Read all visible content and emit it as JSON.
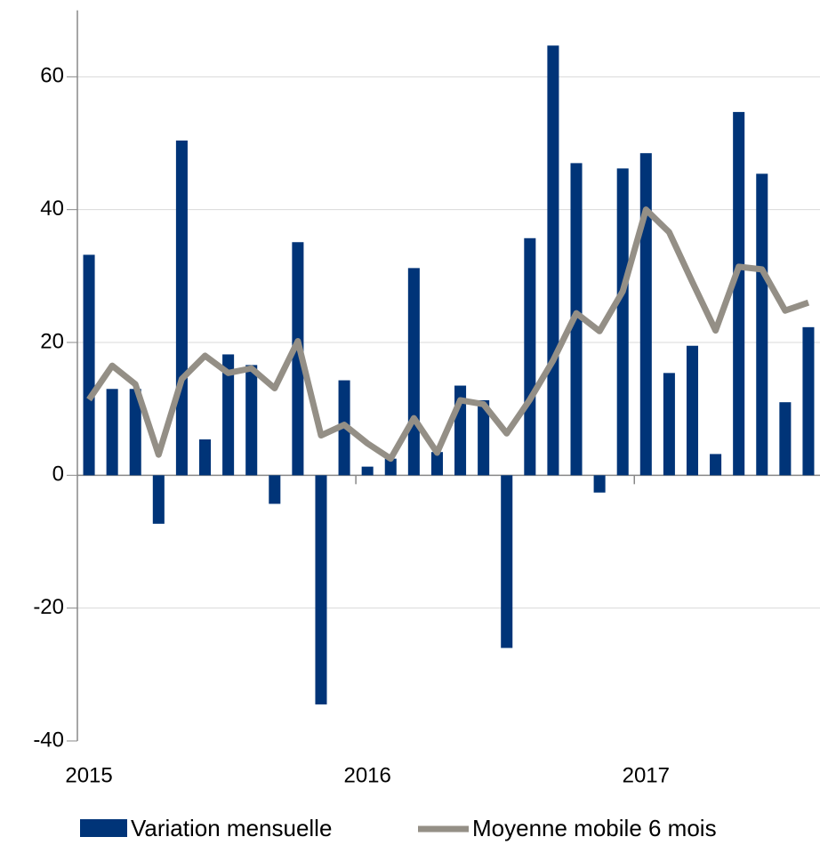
{
  "chart_data": {
    "type": "bar",
    "categories": [
      "2015",
      null,
      null,
      null,
      null,
      null,
      null,
      null,
      null,
      null,
      null,
      null,
      "2016",
      null,
      null,
      null,
      null,
      null,
      null,
      null,
      null,
      null,
      null,
      null,
      "2017",
      null,
      null,
      null,
      null,
      null,
      null,
      null
    ],
    "series": [
      {
        "name": "Variation mensuelle",
        "type": "bar",
        "color": "#003478",
        "values": [
          33.2,
          13,
          13,
          -7.3,
          50.4,
          5.4,
          18.2,
          16.6,
          -4.3,
          35.1,
          -34.5,
          14.3,
          1.3,
          2.5,
          31.2,
          3.5,
          13.5,
          11.3,
          -26,
          35.7,
          64.7,
          47,
          -2.6,
          46.2,
          48.5,
          15.4,
          19.5,
          3.2,
          54.7,
          45.4,
          11,
          22.3
        ]
      },
      {
        "name": "Moyenne mobile 6 mois",
        "type": "line",
        "color": "#948f86",
        "values": [
          11.4,
          16.5,
          13.7,
          3.1,
          14.5,
          18,
          15.4,
          16.1,
          13.1,
          20.2,
          6,
          7.6,
          4.8,
          2.5,
          8.6,
          3.4,
          11.3,
          10.7,
          6.3,
          11.4,
          17.3,
          24.4,
          21.7,
          27.7,
          40,
          36.6,
          29.1,
          21.8,
          31.4,
          31,
          24.8,
          26
        ]
      }
    ],
    "ylim": [
      -40,
      70
    ],
    "yticks": [
      -40,
      -20,
      0,
      20,
      40,
      60
    ],
    "grid": true,
    "legend": "bottom"
  }
}
